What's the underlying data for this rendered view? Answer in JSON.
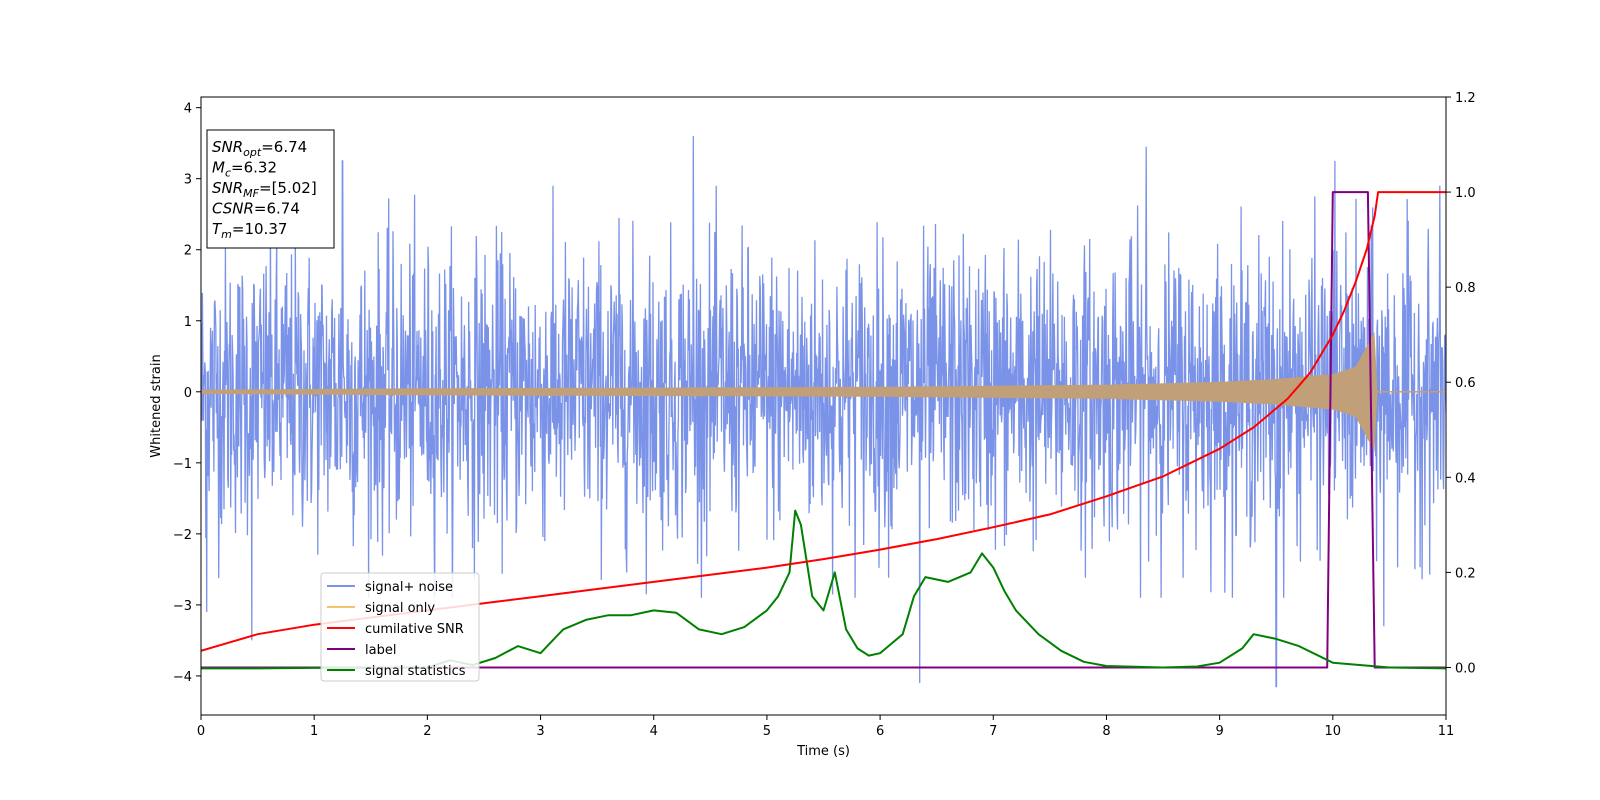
{
  "chart_data": {
    "type": "line",
    "xlabel": "Time (s)",
    "ylabel": "Whitened strain",
    "xlim": [
      0,
      11
    ],
    "ylim": [
      -4.55,
      4.15
    ],
    "y2lim": [
      -0.1,
      1.2
    ],
    "x_ticks": [
      "0",
      "1",
      "2",
      "3",
      "4",
      "5",
      "6",
      "7",
      "8",
      "9",
      "10",
      "11"
    ],
    "y_ticks": [
      "4",
      "3",
      "2",
      "1",
      "0",
      "−1",
      "−2",
      "−3",
      "−4"
    ],
    "y2_ticks": [
      "1.2",
      "1.0",
      "0.8",
      "0.6",
      "0.4",
      "0.2",
      "0.0"
    ],
    "grid": false,
    "legend_position": "lower-left",
    "colors": {
      "signal_noise": "#7a93e8",
      "signal_only": "#f5c36b",
      "signal_only_fill": "#c19f79",
      "cumulative_snr": "#ff0000",
      "label": "#800080",
      "signal_statistics": "#008000"
    },
    "annotation": [
      {
        "var": "SNR",
        "sub": "opt",
        "value": "=6.74"
      },
      {
        "var": "M",
        "sub": "c",
        "value": "=6.32"
      },
      {
        "var": "SNR",
        "sub": "MF",
        "value": "=[5.02]"
      },
      {
        "var": "CSNR",
        "sub": "",
        "value": "=6.74"
      },
      {
        "var": "T",
        "sub": "m",
        "value": "=10.37"
      }
    ],
    "series": [
      {
        "name": "signal+ noise",
        "axis": "left",
        "description_values": {
          "x_range": [
            0,
            11
          ],
          "approx_std": 1.0,
          "range": [
            -4.15,
            3.6
          ]
        },
        "spikes": [
          [
            0.05,
            -3.1
          ],
          [
            0.45,
            -3.5
          ],
          [
            1.25,
            3.25
          ],
          [
            4.35,
            3.6
          ],
          [
            6.35,
            -4.1
          ],
          [
            8.35,
            3.45
          ],
          [
            9.5,
            -4.15
          ],
          [
            10.02,
            3.25
          ],
          [
            10.45,
            -3.3
          ]
        ]
      },
      {
        "name": "signal only",
        "axis": "left",
        "envelope": [
          [
            0,
            0.03
          ],
          [
            2,
            0.05
          ],
          [
            4,
            0.06
          ],
          [
            6,
            0.07
          ],
          [
            8,
            0.1
          ],
          [
            9,
            0.14
          ],
          [
            9.5,
            0.18
          ],
          [
            10,
            0.25
          ],
          [
            10.2,
            0.35
          ],
          [
            10.37,
            0.85
          ],
          [
            10.38,
            0
          ],
          [
            11,
            0
          ]
        ]
      },
      {
        "name": "cumilative SNR",
        "axis": "right",
        "x": [
          0,
          0.5,
          1,
          1.5,
          2,
          2.5,
          3,
          3.5,
          4,
          4.5,
          5,
          5.5,
          6,
          6.5,
          7,
          7.5,
          8,
          8.5,
          9,
          9.3,
          9.6,
          9.8,
          10,
          10.1,
          10.2,
          10.3,
          10.37,
          10.4,
          11
        ],
        "y": [
          0.035,
          0.07,
          0.09,
          0.105,
          0.12,
          0.135,
          0.15,
          0.165,
          0.18,
          0.195,
          0.21,
          0.228,
          0.248,
          0.27,
          0.295,
          0.322,
          0.36,
          0.402,
          0.46,
          0.505,
          0.565,
          0.62,
          0.7,
          0.75,
          0.81,
          0.88,
          0.95,
          1.0,
          1.0
        ]
      },
      {
        "name": "label",
        "axis": "right",
        "x": [
          0,
          9.95,
          10.0,
          10.31,
          10.37,
          11
        ],
        "y": [
          0,
          0,
          1.0,
          1.0,
          0,
          0
        ]
      },
      {
        "name": "signal statistics",
        "axis": "right",
        "x": [
          0,
          0.5,
          1,
          1.5,
          2,
          2.2,
          2.4,
          2.6,
          2.8,
          3,
          3.2,
          3.4,
          3.6,
          3.8,
          4,
          4.2,
          4.4,
          4.6,
          4.8,
          5,
          5.1,
          5.2,
          5.25,
          5.3,
          5.4,
          5.5,
          5.6,
          5.7,
          5.8,
          5.9,
          6,
          6.2,
          6.3,
          6.4,
          6.6,
          6.8,
          6.9,
          7,
          7.1,
          7.2,
          7.4,
          7.6,
          7.8,
          8,
          8.5,
          8.8,
          9,
          9.2,
          9.3,
          9.5,
          9.7,
          10,
          10.5,
          11
        ],
        "y": [
          -0.002,
          -0.002,
          -0.001,
          -0.001,
          0.0,
          0.015,
          0.005,
          0.02,
          0.045,
          0.03,
          0.08,
          0.1,
          0.11,
          0.11,
          0.12,
          0.115,
          0.08,
          0.07,
          0.085,
          0.12,
          0.15,
          0.2,
          0.33,
          0.3,
          0.15,
          0.12,
          0.2,
          0.08,
          0.04,
          0.025,
          0.03,
          0.07,
          0.15,
          0.19,
          0.18,
          0.2,
          0.24,
          0.21,
          0.16,
          0.12,
          0.07,
          0.035,
          0.012,
          0.003,
          0.0,
          0.002,
          0.01,
          0.04,
          0.07,
          0.06,
          0.045,
          0.01,
          0.0,
          -0.002
        ]
      }
    ]
  }
}
